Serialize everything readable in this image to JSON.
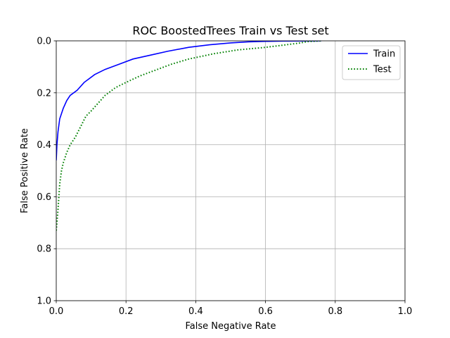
{
  "chart_data": {
    "type": "line",
    "title": "ROC BoostedTrees Train vs Test set",
    "xlabel": "False Negative Rate",
    "ylabel": "False Positive Rate",
    "xlim": [
      0,
      1
    ],
    "ylim": [
      0,
      1
    ],
    "y_inverted": true,
    "grid": true,
    "legend_position": "top-right",
    "xticks": [
      "0.0",
      "0.2",
      "0.4",
      "0.6",
      "0.8",
      "1.0"
    ],
    "yticks": [
      "0.0",
      "0.2",
      "0.4",
      "0.6",
      "0.8",
      "1.0"
    ],
    "series": [
      {
        "name": "Train",
        "color": "#0000ff",
        "style": "solid",
        "x": [
          0.0,
          0.002,
          0.005,
          0.01,
          0.02,
          0.03,
          0.04,
          0.06,
          0.08,
          0.11,
          0.14,
          0.18,
          0.22,
          0.27,
          0.32,
          0.38,
          0.44,
          0.5,
          0.55,
          0.6,
          0.65,
          0.7,
          0.75,
          0.76
        ],
        "y": [
          0.46,
          0.4,
          0.35,
          0.3,
          0.26,
          0.23,
          0.21,
          0.19,
          0.16,
          0.13,
          0.11,
          0.09,
          0.07,
          0.055,
          0.04,
          0.025,
          0.015,
          0.008,
          0.004,
          0.002,
          0.001,
          0.0005,
          0.0001,
          0.0
        ]
      },
      {
        "name": "Test",
        "color": "#008000",
        "style": "dotted",
        "x": [
          0.0,
          0.005,
          0.01,
          0.015,
          0.02,
          0.03,
          0.04,
          0.055,
          0.07,
          0.085,
          0.1,
          0.12,
          0.14,
          0.17,
          0.2,
          0.24,
          0.28,
          0.33,
          0.38,
          0.45,
          0.52,
          0.6,
          0.66,
          0.7,
          0.72,
          0.76
        ],
        "y": [
          0.73,
          0.65,
          0.55,
          0.5,
          0.47,
          0.43,
          0.4,
          0.37,
          0.33,
          0.29,
          0.27,
          0.24,
          0.21,
          0.18,
          0.16,
          0.135,
          0.115,
          0.09,
          0.07,
          0.05,
          0.035,
          0.025,
          0.015,
          0.008,
          0.003,
          0.0
        ]
      }
    ]
  }
}
